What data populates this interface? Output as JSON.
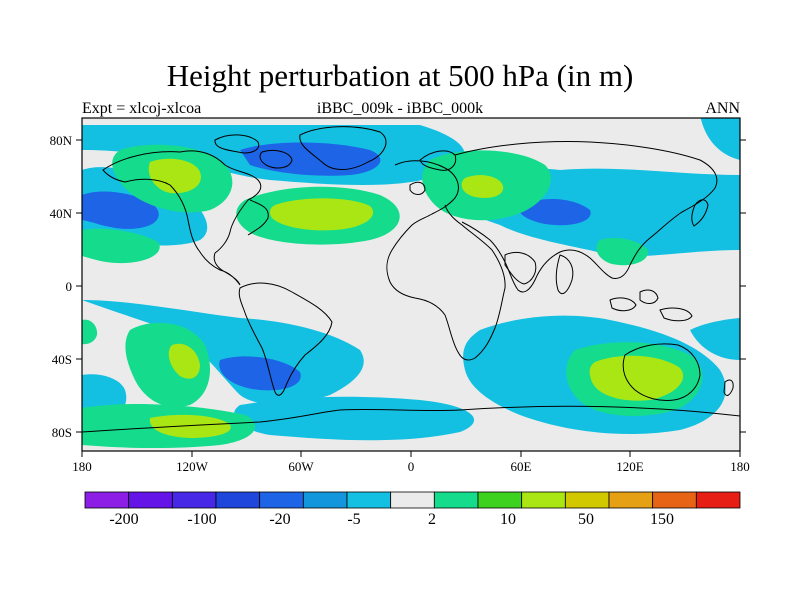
{
  "title": "Height perturbation at 500 hPa (in m)",
  "subtitle_left": "Expt = xlcoj-xlcoa",
  "subtitle_center": "iBBC_009k - iBBC_000k",
  "subtitle_right": "ANN",
  "map": {
    "lat_ticks": [
      "80N",
      "40N",
      "0",
      "40S",
      "80S"
    ],
    "lon_ticks": [
      "180",
      "120W",
      "60W",
      "0",
      "60E",
      "120E",
      "180"
    ]
  },
  "colorbar": {
    "colors": [
      "#8c1ee6",
      "#6414e6",
      "#4628e6",
      "#1e46dc",
      "#1e64e6",
      "#1496dc",
      "#14c0e1",
      "#ebebeb",
      "#14dc8c",
      "#3cd21e",
      "#aae614",
      "#d2c800",
      "#e6a014",
      "#e66414",
      "#e61e14"
    ],
    "labels": [
      "-200",
      "-100",
      "-20",
      "-5",
      "2",
      "10",
      "50",
      "150"
    ]
  },
  "palette": {
    "neutral": "#ebebeb",
    "lightblue": "#14c0e1",
    "blue": "#1e64e6",
    "green": "#14dc8c",
    "lime": "#aae614"
  }
}
